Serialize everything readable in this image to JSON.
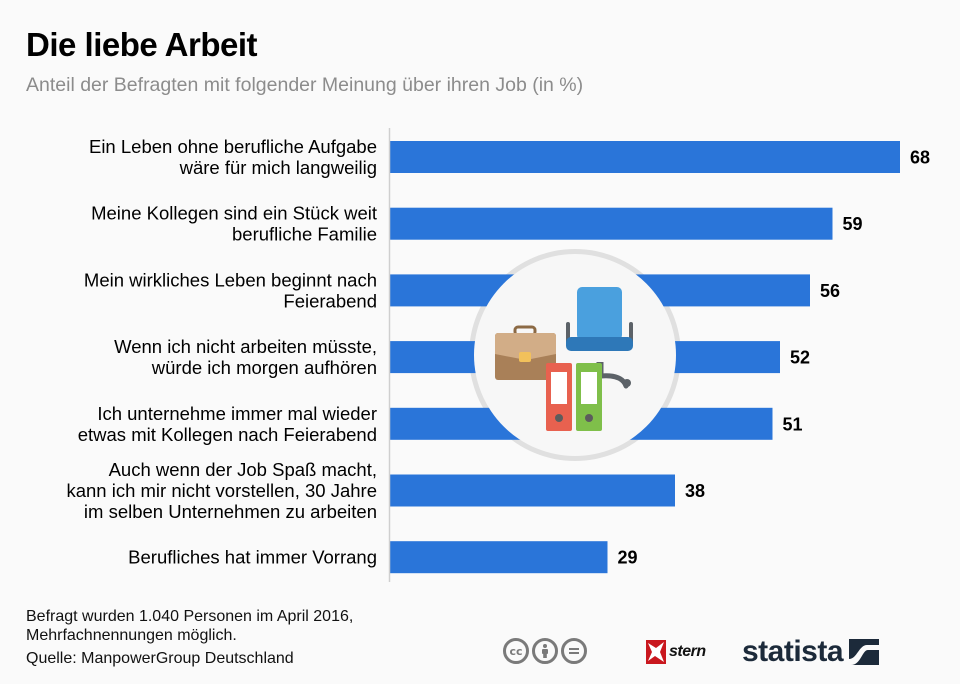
{
  "header": {
    "title": "Die liebe Arbeit",
    "subtitle": "Anteil der Befragten mit folgender Meinung über ihren Job (in %)"
  },
  "chart_data": {
    "type": "bar",
    "orientation": "horizontal",
    "title": "Die liebe Arbeit",
    "subtitle": "Anteil der Befragten mit folgender Meinung über ihren Job (in %)",
    "xlabel": "",
    "ylabel": "",
    "unit": "%",
    "grid": false,
    "legend": "none",
    "xlim": [
      0,
      70
    ],
    "categories": [
      [
        "Ein Leben ohne berufliche Aufgabe",
        "wäre für mich langweilig"
      ],
      [
        "Meine Kollegen sind ein Stück weit",
        "berufliche Familie"
      ],
      [
        "Mein wirkliches Leben beginnt nach",
        "Feierabend"
      ],
      [
        "Wenn ich nicht arbeiten müsste,",
        "würde ich morgen aufhören"
      ],
      [
        "Ich unternehme immer mal wieder",
        "etwas mit Kollegen nach Feierabend"
      ],
      [
        "Auch wenn der Job Spaß macht,",
        "kann ich mir nicht vorstellen, 30 Jahre",
        "im selben Unternehmen zu arbeiten"
      ],
      [
        "Berufliches hat immer Vorrang"
      ]
    ],
    "values": [
      68,
      59,
      56,
      52,
      51,
      38,
      29
    ],
    "bar_color": "#2a75d9"
  },
  "illustration": {
    "name": "office-illustration",
    "items": [
      "briefcase-icon",
      "office-chair-icon",
      "red-folder-icon",
      "green-folder-icon"
    ]
  },
  "footer": {
    "note_lines": [
      "Befragt wurden 1.040 Personen im April 2016,",
      "Mehrfachnennungen möglich."
    ],
    "source": "Quelle: ManpowerGroup Deutschland",
    "license_icons": [
      "cc-icon",
      "by-icon",
      "nd-icon"
    ],
    "license_glyphs": [
      "cc",
      "",
      "="
    ],
    "stern_label": "stern",
    "statista_label": "statista"
  }
}
